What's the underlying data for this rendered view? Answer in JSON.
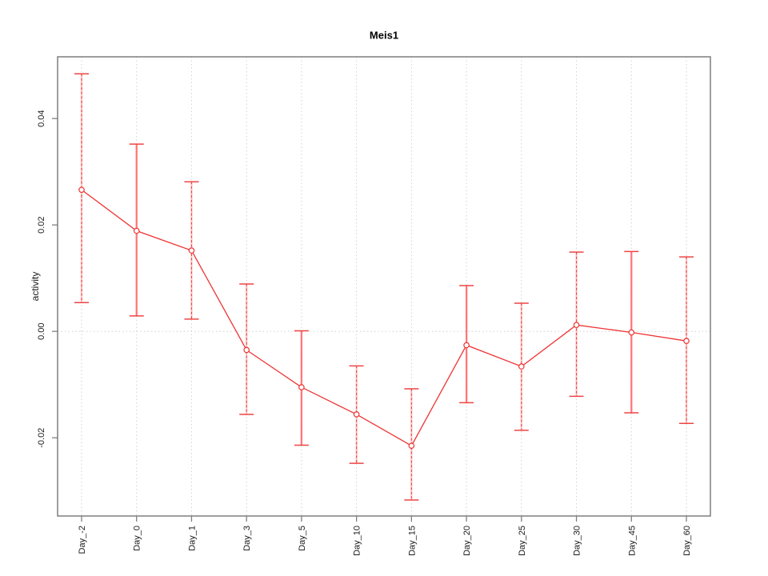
{
  "figure": {
    "title": "Meis1",
    "ylabel": "activity"
  },
  "chart_data": {
    "type": "line",
    "title": "Meis1",
    "xlabel": "",
    "ylabel": "activity",
    "categories": [
      "Day_-2",
      "Day_0",
      "Day_1",
      "Day_3",
      "Day_5",
      "Day_10",
      "Day_15",
      "Day_20",
      "Day_25",
      "Day_30",
      "Day_45",
      "Day_60"
    ],
    "series": [
      {
        "name": "mean",
        "values": [
          0.0266,
          0.0189,
          0.0152,
          -0.0035,
          -0.0105,
          -0.0156,
          -0.0215,
          -0.0026,
          -0.0066,
          0.0012,
          -0.0002,
          -0.0018
        ]
      },
      {
        "name": "upper_error",
        "values": [
          0.0484,
          0.0352,
          0.0281,
          0.0089,
          0.0001,
          -0.0065,
          -0.0108,
          0.0086,
          0.0053,
          0.0149,
          0.015,
          0.014
        ]
      },
      {
        "name": "lower_error",
        "values": [
          0.0054,
          0.0029,
          0.0023,
          -0.0156,
          -0.0214,
          -0.0248,
          -0.0317,
          -0.0134,
          -0.0186,
          -0.0122,
          -0.0153,
          -0.0173
        ]
      }
    ],
    "error_bar_styles": [
      "dashed",
      "solid",
      "dashed",
      "dashed",
      "solid",
      "dashed",
      "dashed",
      "solid",
      "dashed",
      "dashed",
      "solid",
      "dashed"
    ],
    "yticks": {
      "values": [
        -0.02,
        0,
        0.02,
        0.04
      ],
      "labels": [
        "-0.02",
        "0.00",
        "0.02",
        "0.04"
      ]
    },
    "ylim": [
      -0.0347,
      0.0516
    ],
    "grid": {
      "vertical": "each-category",
      "horizontal_at": 0
    },
    "legend": "none",
    "colors": {
      "series": "#ef3333",
      "error_bar_solid": "#ff9d9d",
      "error_bar_dashed": "#ef4444",
      "error_bar_underlay": "rgba(255,130,130,0.45)",
      "marker_fill": "#ffffff",
      "grid": "#d2d2d2",
      "axis": "#7f7f7f",
      "text": "#1a1a1a"
    }
  }
}
